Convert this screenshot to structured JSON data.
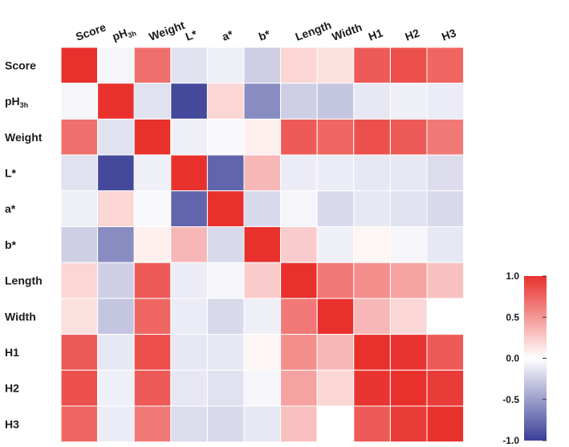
{
  "chart_data": {
    "type": "heatmap",
    "title": "",
    "variables": [
      {
        "name": "Score",
        "sub": ""
      },
      {
        "name": "pH",
        "sub": "3h"
      },
      {
        "name": "Weight",
        "sub": ""
      },
      {
        "name": "L*",
        "sub": ""
      },
      {
        "name": "a*",
        "sub": ""
      },
      {
        "name": "b*",
        "sub": ""
      },
      {
        "name": "Length",
        "sub": ""
      },
      {
        "name": "Width",
        "sub": ""
      },
      {
        "name": "H1",
        "sub": ""
      },
      {
        "name": "H2",
        "sub": ""
      },
      {
        "name": "H3",
        "sub": ""
      }
    ],
    "matrix": [
      [
        1.0,
        -0.05,
        0.7,
        -0.15,
        -0.08,
        -0.25,
        0.2,
        0.15,
        0.8,
        0.85,
        0.75
      ],
      [
        -0.05,
        1.0,
        -0.15,
        -0.95,
        0.2,
        -0.6,
        -0.25,
        -0.3,
        -0.12,
        -0.08,
        -0.1
      ],
      [
        0.7,
        -0.15,
        1.0,
        -0.08,
        -0.03,
        0.08,
        0.8,
        0.75,
        0.85,
        0.8,
        0.65
      ],
      [
        -0.15,
        -0.95,
        -0.08,
        1.0,
        -0.8,
        0.35,
        -0.1,
        -0.1,
        -0.12,
        -0.12,
        -0.18
      ],
      [
        -0.08,
        0.2,
        -0.03,
        -0.8,
        1.0,
        -0.2,
        -0.05,
        -0.2,
        -0.12,
        -0.15,
        -0.2
      ],
      [
        -0.25,
        -0.6,
        0.08,
        0.35,
        -0.2,
        1.0,
        0.25,
        -0.08,
        0.05,
        -0.05,
        -0.12
      ],
      [
        0.2,
        -0.25,
        0.8,
        -0.1,
        -0.05,
        0.25,
        1.0,
        0.65,
        0.55,
        0.45,
        0.3
      ],
      [
        0.15,
        -0.3,
        0.75,
        -0.1,
        -0.2,
        -0.08,
        0.65,
        1.0,
        0.35,
        0.2,
        null
      ],
      [
        0.8,
        -0.12,
        0.85,
        -0.12,
        -0.12,
        0.05,
        0.55,
        0.35,
        1.0,
        0.98,
        0.8
      ],
      [
        0.85,
        -0.08,
        0.8,
        -0.12,
        -0.15,
        -0.05,
        0.45,
        0.2,
        0.98,
        1.0,
        0.95
      ],
      [
        0.75,
        -0.1,
        0.65,
        -0.18,
        -0.2,
        -0.12,
        0.3,
        null,
        0.8,
        0.95,
        1.0
      ]
    ],
    "colorbar": {
      "min": -1.0,
      "max": 1.0,
      "ticks": [
        "1.0",
        "0.5",
        "0.0",
        "-0.5",
        "-1.0"
      ],
      "tick_values": [
        1.0,
        0.5,
        0.0,
        -0.5,
        -1.0
      ]
    },
    "colors": {
      "high": "#e8312d",
      "mid": "#ffffff",
      "low": "#3a3f97",
      "grid": "#ffffff"
    }
  }
}
